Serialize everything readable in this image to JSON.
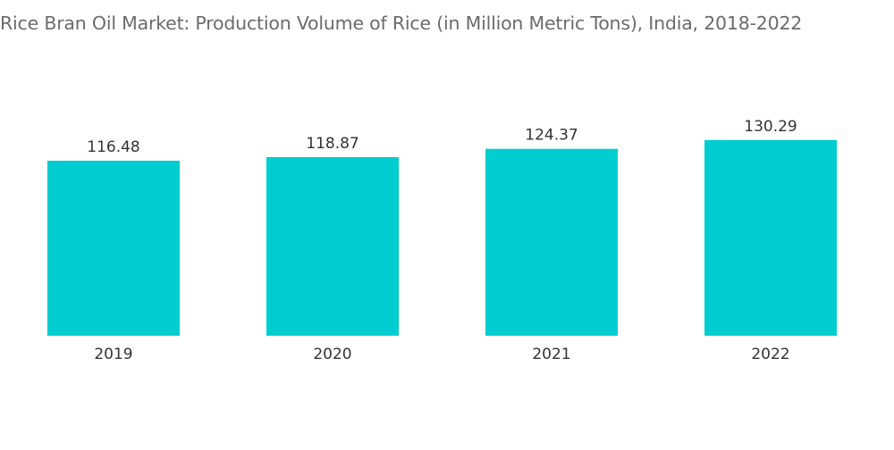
{
  "chart_data": {
    "type": "bar",
    "title": "Rice Bran Oil Market: Production Volume of Rice (in Million Metric Tons), India, 2018-2022",
    "categories": [
      "2019",
      "2020",
      "2021",
      "2022"
    ],
    "values": [
      116.48,
      118.87,
      124.37,
      130.29
    ],
    "value_labels": [
      "116.48",
      "118.87",
      "124.37",
      "130.29"
    ],
    "bar_color": "#00cdd0",
    "grid": false,
    "legend": "none"
  }
}
